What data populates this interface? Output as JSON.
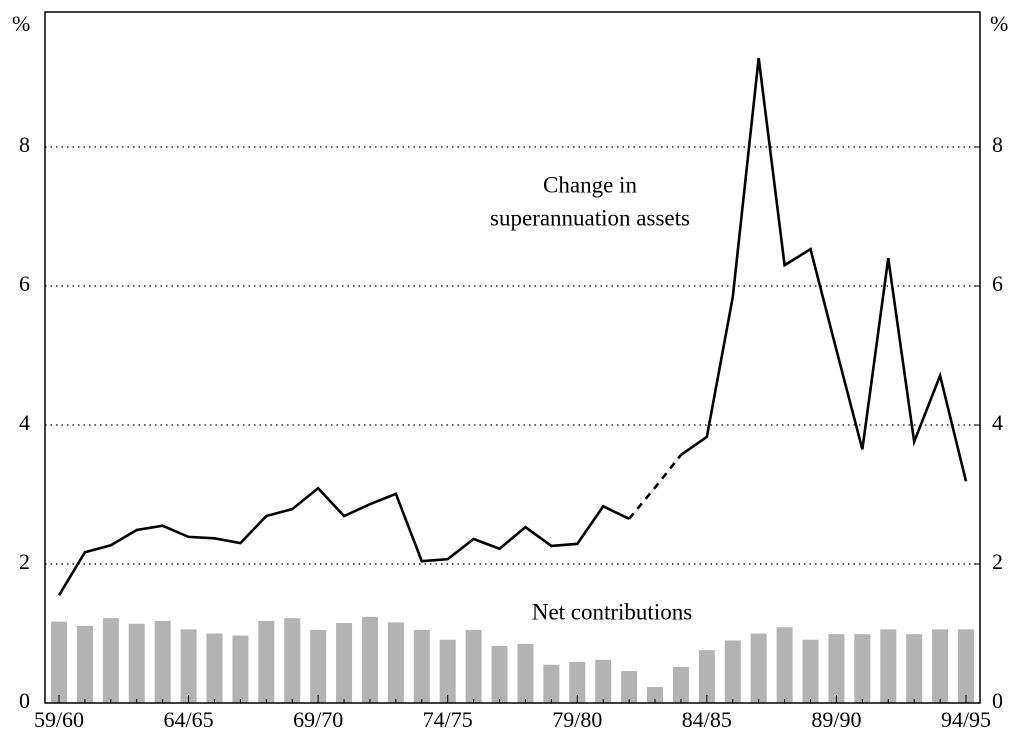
{
  "chart_data": {
    "type": "bar_line",
    "categories": [
      "59/60",
      null,
      null,
      null,
      null,
      "64/65",
      null,
      null,
      null,
      null,
      "69/70",
      null,
      null,
      null,
      null,
      "74/75",
      null,
      null,
      null,
      null,
      "79/80",
      null,
      null,
      null,
      null,
      "84/85",
      null,
      null,
      null,
      null,
      "89/90",
      null,
      null,
      null,
      null,
      "94/95"
    ],
    "series": [
      {
        "name": "Net contributions",
        "kind": "bar",
        "color": "#b3b3b3",
        "values": [
          1.17,
          1.11,
          1.22,
          1.14,
          1.18,
          1.06,
          1.0,
          0.97,
          1.18,
          1.22,
          1.05,
          1.15,
          1.24,
          1.16,
          1.05,
          0.91,
          1.05,
          0.82,
          0.85,
          0.55,
          0.59,
          0.62,
          0.46,
          0.23,
          0.52,
          0.76,
          0.9,
          1.0,
          1.09,
          0.91,
          0.99,
          0.99,
          1.06,
          0.99,
          1.06,
          1.06
        ]
      },
      {
        "name": "Change in superannuation assets",
        "kind": "line",
        "color": "#000000",
        "dashed_points": [
          23
        ],
        "values": [
          1.55,
          2.17,
          2.27,
          2.49,
          2.55,
          2.39,
          2.37,
          2.3,
          2.69,
          2.79,
          3.09,
          2.69,
          2.86,
          3.01,
          2.04,
          2.07,
          2.36,
          2.22,
          2.53,
          2.26,
          2.29,
          2.83,
          2.65,
          3.1,
          3.57,
          3.83,
          5.84,
          9.28,
          6.3,
          6.53,
          5.08,
          3.65,
          6.4,
          3.76,
          4.71,
          3.19
        ]
      }
    ],
    "annotations": [
      {
        "lines": [
          "Change in",
          "superannuation assets"
        ]
      },
      {
        "lines": [
          "Net contributions"
        ]
      }
    ],
    "y_unit": "%",
    "y2_unit": "%",
    "ylim": [
      0,
      10
    ],
    "yticks": [
      0,
      2,
      4,
      6,
      8
    ],
    "y2lim": [
      0,
      10
    ],
    "y2ticks": [
      0,
      2,
      4,
      6,
      8
    ],
    "grid": true
  }
}
